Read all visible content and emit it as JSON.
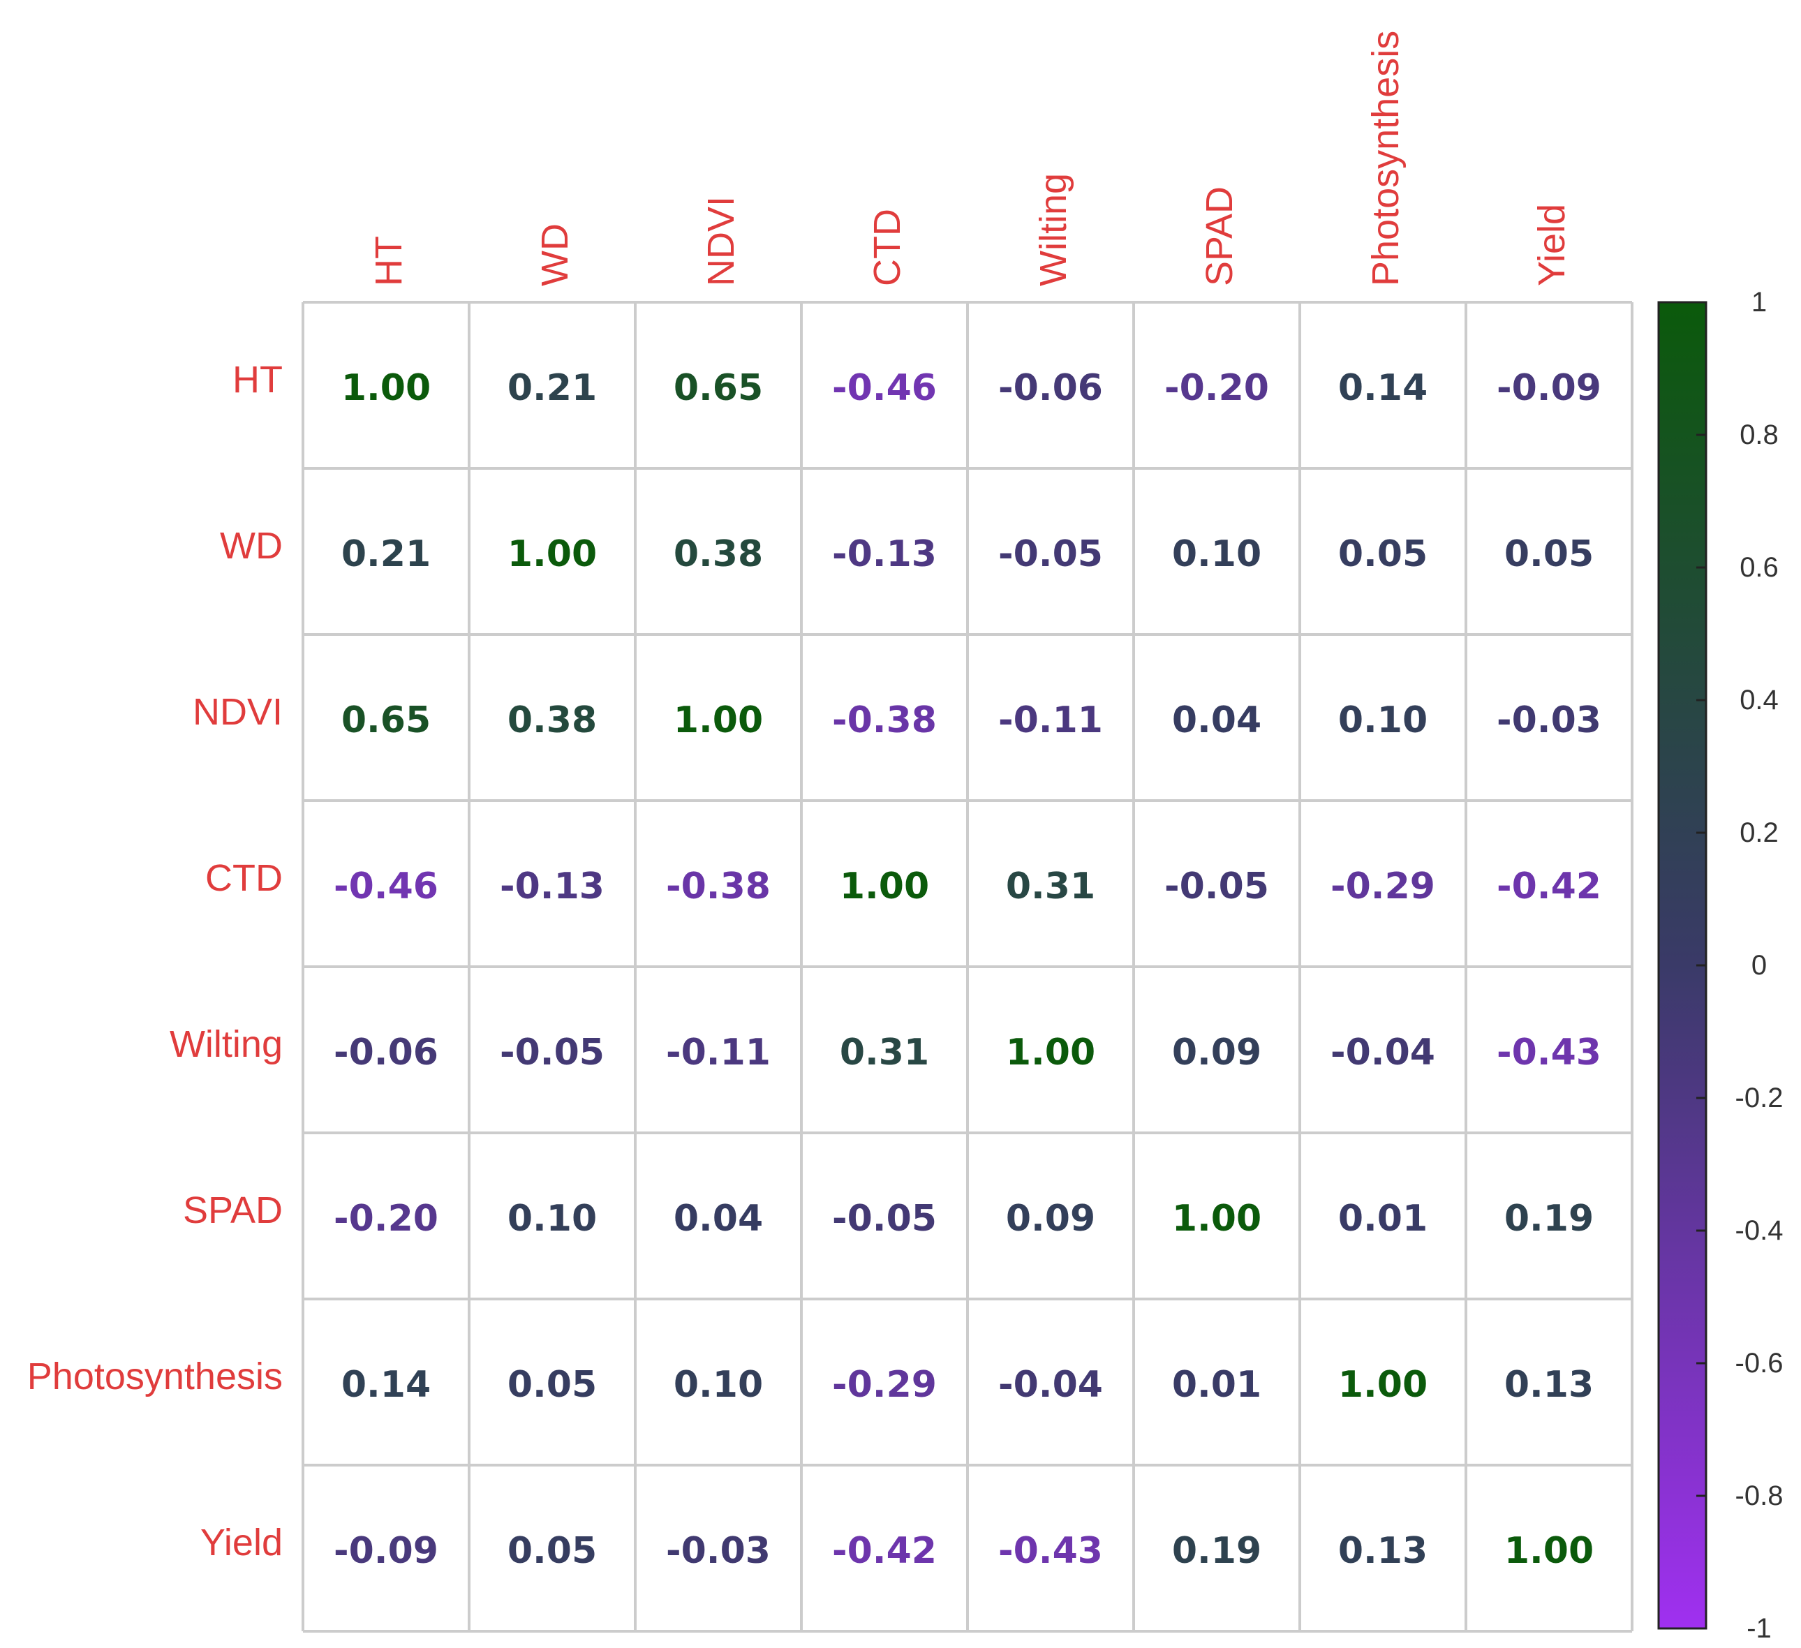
{
  "chart_data": {
    "type": "heatmap",
    "variables": [
      "HT",
      "WD",
      "NDVI",
      "CTD",
      "Wilting",
      "SPAD",
      "Photosynthesis",
      "Yield"
    ],
    "matrix": [
      [
        "1.00",
        "0.21",
        "0.65",
        "-0.46",
        "-0.06",
        "-0.20",
        "0.14",
        "-0.09"
      ],
      [
        "0.21",
        "1.00",
        "0.38",
        "-0.13",
        "-0.05",
        "0.10",
        "0.05",
        "0.05"
      ],
      [
        "0.65",
        "0.38",
        "1.00",
        "-0.38",
        "-0.11",
        "0.04",
        "0.10",
        "-0.03"
      ],
      [
        "-0.46",
        "-0.13",
        "-0.38",
        "1.00",
        "0.31",
        "-0.05",
        "-0.29",
        "-0.42"
      ],
      [
        "-0.06",
        "-0.05",
        "-0.11",
        "0.31",
        "1.00",
        "0.09",
        "-0.04",
        "-0.43"
      ],
      [
        "-0.20",
        "0.10",
        "0.04",
        "-0.05",
        "0.09",
        "1.00",
        "0.01",
        "0.19"
      ],
      [
        "0.14",
        "0.05",
        "0.10",
        "-0.29",
        "-0.04",
        "0.01",
        "1.00",
        "0.13"
      ],
      [
        "-0.09",
        "0.05",
        "-0.03",
        "-0.42",
        "-0.43",
        "0.19",
        "0.13",
        "1.00"
      ]
    ],
    "colorbar": {
      "ticks": [
        "1",
        "0.8",
        "0.6",
        "0.4",
        "0.2",
        "0",
        "-0.2",
        "-0.4",
        "-0.6",
        "-0.8",
        "-1"
      ],
      "range": [
        -1,
        1
      ],
      "colors": {
        "low": "#a030f0",
        "mid": "#3a3a68",
        "high": "#0b5a0b"
      }
    },
    "label_color": "#e03c3c",
    "grid_color": "#cccccc"
  }
}
